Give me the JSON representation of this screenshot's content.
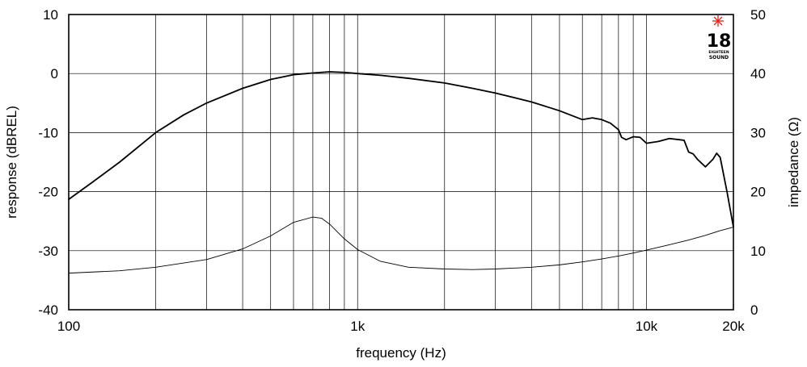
{
  "chart_data": {
    "type": "line",
    "xlabel": "frequency (Hz)",
    "ylabel": "response (dBREL)",
    "y2label": "impedance (Ω)",
    "x_scale": "log",
    "xlim": [
      100,
      20000
    ],
    "ylim": [
      -40,
      10
    ],
    "y2lim": [
      0,
      50
    ],
    "grid": true,
    "x_tick_labels": [
      {
        "value": 100,
        "label": "100"
      },
      {
        "value": 1000,
        "label": "1k"
      },
      {
        "value": 10000,
        "label": "10k"
      },
      {
        "value": 20000,
        "label": "20k"
      }
    ],
    "y_tick_labels": [
      {
        "value": 10,
        "label": "10"
      },
      {
        "value": 0,
        "label": "0"
      },
      {
        "value": -10,
        "label": "-10"
      },
      {
        "value": -20,
        "label": "-20"
      },
      {
        "value": -30,
        "label": "-30"
      },
      {
        "value": -40,
        "label": "-40"
      }
    ],
    "y2_tick_labels": [
      {
        "value": 50,
        "label": "50"
      },
      {
        "value": 40,
        "label": "40"
      },
      {
        "value": 30,
        "label": "30"
      },
      {
        "value": 20,
        "label": "20"
      },
      {
        "value": 10,
        "label": "10"
      },
      {
        "value": 0,
        "label": "0"
      }
    ],
    "x_gridlines": [
      100,
      200,
      300,
      400,
      500,
      600,
      700,
      800,
      900,
      1000,
      2000,
      3000,
      4000,
      5000,
      6000,
      7000,
      8000,
      9000,
      10000,
      20000
    ],
    "y_gridlines": [
      10,
      0,
      -10,
      -20,
      -30,
      -40
    ],
    "series": [
      {
        "axis": "left",
        "points": [
          [
            100,
            -21.3
          ],
          [
            120,
            -18.5
          ],
          [
            150,
            -15
          ],
          [
            200,
            -10
          ],
          [
            250,
            -7
          ],
          [
            300,
            -5
          ],
          [
            400,
            -2.5
          ],
          [
            500,
            -1.0
          ],
          [
            600,
            -0.2
          ],
          [
            700,
            0.1
          ],
          [
            800,
            0.3
          ],
          [
            900,
            0.2
          ],
          [
            1000,
            0
          ],
          [
            1200,
            -0.3
          ],
          [
            1500,
            -0.8
          ],
          [
            2000,
            -1.6
          ],
          [
            2500,
            -2.5
          ],
          [
            3000,
            -3.3
          ],
          [
            4000,
            -4.8
          ],
          [
            5000,
            -6.3
          ],
          [
            6000,
            -7.8
          ],
          [
            6500,
            -7.5
          ],
          [
            7000,
            -7.8
          ],
          [
            7500,
            -8.4
          ],
          [
            8000,
            -9.5
          ],
          [
            8200,
            -10.8
          ],
          [
            8500,
            -11.2
          ],
          [
            9000,
            -10.7
          ],
          [
            9500,
            -10.8
          ],
          [
            10000,
            -11.8
          ],
          [
            11000,
            -11.5
          ],
          [
            12000,
            -11.0
          ],
          [
            13000,
            -11.2
          ],
          [
            13500,
            -11.3
          ],
          [
            14000,
            -13.3
          ],
          [
            14500,
            -13.6
          ],
          [
            15000,
            -14.5
          ],
          [
            16000,
            -15.8
          ],
          [
            17000,
            -14.5
          ],
          [
            17500,
            -13.5
          ],
          [
            18000,
            -14.2
          ],
          [
            19000,
            -20
          ],
          [
            20000,
            -26
          ]
        ]
      },
      {
        "axis": "right",
        "points": [
          [
            100,
            6.2
          ],
          [
            150,
            6.6
          ],
          [
            200,
            7.2
          ],
          [
            300,
            8.5
          ],
          [
            400,
            10.3
          ],
          [
            500,
            12.5
          ],
          [
            600,
            14.8
          ],
          [
            700,
            15.7
          ],
          [
            750,
            15.5
          ],
          [
            800,
            14.5
          ],
          [
            900,
            12.0
          ],
          [
            1000,
            10.2
          ],
          [
            1200,
            8.2
          ],
          [
            1500,
            7.2
          ],
          [
            2000,
            6.9
          ],
          [
            2500,
            6.8
          ],
          [
            3000,
            6.9
          ],
          [
            4000,
            7.2
          ],
          [
            5000,
            7.6
          ],
          [
            6000,
            8.1
          ],
          [
            7000,
            8.6
          ],
          [
            8000,
            9.1
          ],
          [
            9000,
            9.6
          ],
          [
            10000,
            10.1
          ],
          [
            12000,
            11.0
          ],
          [
            14000,
            11.8
          ],
          [
            16000,
            12.6
          ],
          [
            18000,
            13.4
          ],
          [
            20000,
            14.0
          ]
        ]
      }
    ]
  },
  "logo": {
    "number": "18",
    "line1": "EIGHTEEN",
    "line2": "SOUND",
    "star_color": "#e2231a"
  }
}
